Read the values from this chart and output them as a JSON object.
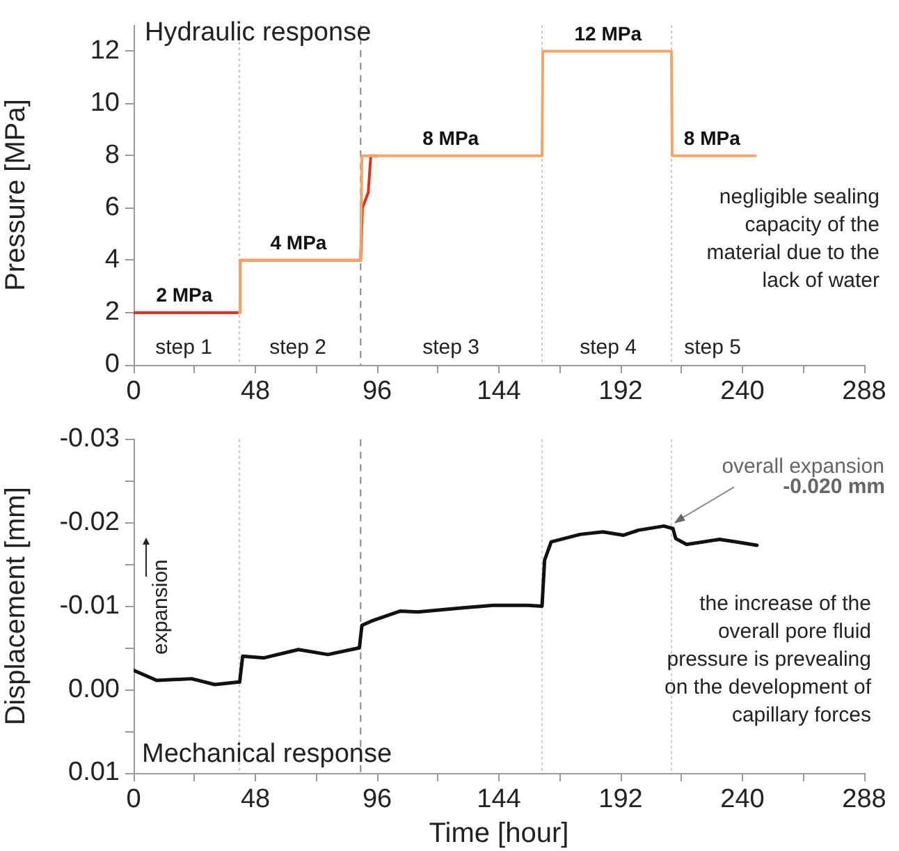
{
  "chart_data": [
    {
      "type": "line",
      "ylabel": "Pressure [MPa]",
      "xlim": [
        0,
        288
      ],
      "xticks": [
        0,
        {
          "value": 24,
          "label": null
        },
        48,
        {
          "value": 72,
          "label": null
        },
        96,
        {
          "value": 120,
          "label": null
        },
        144,
        {
          "value": 168,
          "label": null
        },
        192,
        {
          "value": 216,
          "label": null
        },
        240,
        {
          "value": 264,
          "label": null
        },
        288
      ],
      "ylim": [
        0,
        13
      ],
      "yticks": [
        0,
        2,
        4,
        6,
        8,
        10,
        12
      ],
      "series": [
        {
          "color": "#e0301e",
          "x": [
            0,
            41.7,
            42,
            89.5,
            90.2,
            92.5,
            93.5,
            96
          ],
          "values": [
            2,
            2,
            4,
            4,
            6,
            6.6,
            8,
            8
          ]
        },
        {
          "color": "#f4a468",
          "x": [
            41.7,
            42,
            89.5,
            90,
            161,
            161.3,
            212,
            212.3,
            245
          ],
          "values": [
            2,
            4,
            4,
            8,
            8,
            12,
            12,
            8,
            8
          ]
        }
      ],
      "ref_lines": [
        {
          "axis": "x",
          "value": 41.7,
          "color": "#c8c8c8",
          "line_style": "dotted"
        },
        {
          "axis": "x",
          "value": 89.5,
          "color": "#888888",
          "line_style": "dashed"
        },
        {
          "axis": "x",
          "value": 161,
          "color": "#c8c8c8",
          "line_style": "dotted"
        },
        {
          "axis": "x",
          "value": 212,
          "color": "#c8c8c8",
          "line_style": "dotted"
        }
      ],
      "annotations": [
        "Hydraulic response",
        "negligible sealing capacity of the material due to the lack of water",
        {
          "text": "2 MPa",
          "x": 20,
          "y": 2
        },
        {
          "text": "4 MPa",
          "x": 65,
          "y": 4
        },
        {
          "text": "8 MPa",
          "x": 125,
          "y": 8
        },
        {
          "text": "12 MPa",
          "x": 187,
          "y": 12
        },
        {
          "text": "8 MPa",
          "x": 228,
          "y": 8
        },
        "step 1",
        "step 2",
        "step 3",
        "step 4",
        "step 5"
      ],
      "grid": false,
      "legend": false,
      "marker": "none",
      "line_style": "solid"
    },
    {
      "type": "line",
      "xlabel": "Time [hour]",
      "ylabel": "Displacement [mm]",
      "xlim": [
        0,
        288
      ],
      "xticks": [
        0,
        {
          "value": 24,
          "label": null
        },
        48,
        {
          "value": 72,
          "label": null
        },
        96,
        {
          "value": 120,
          "label": null
        },
        144,
        {
          "value": 168,
          "label": null
        },
        192,
        {
          "value": 216,
          "label": null
        },
        240,
        {
          "value": 264,
          "label": null
        },
        288
      ],
      "ylim": [
        0.01,
        -0.03
      ],
      "yticks": [
        -0.03,
        {
          "value": -0.025,
          "label": null
        },
        -0.02,
        {
          "value": -0.015,
          "label": null
        },
        -0.01,
        {
          "value": -0.005,
          "label": null
        },
        {
          "value": 0,
          "label": "0.00"
        },
        {
          "value": 0.005,
          "label": null
        },
        0.01
      ],
      "series": [
        {
          "color": "#111111",
          "x": [
            0,
            9.1,
            22.9,
            32,
            41,
            41.8,
            43,
            51.4,
            65,
            76.6,
            89,
            90,
            93.7,
            105,
            112,
            130,
            141.7,
            155,
            161,
            162,
            164.6,
            176,
            185,
            193,
            199,
            209,
            212.6,
            213.7,
            218,
            231,
            237.7,
            245.7
          ],
          "values": [
            -0.0023,
            -0.0011,
            -0.0013,
            -0.0006,
            -0.0009,
            -0.0009,
            -0.004,
            -0.0038,
            -0.0048,
            -0.0042,
            -0.005,
            -0.0077,
            -0.0082,
            -0.0094,
            -0.0093,
            -0.0098,
            -0.0101,
            -0.0101,
            -0.01,
            -0.0155,
            -0.0177,
            -0.0186,
            -0.0189,
            -0.0185,
            -0.0191,
            -0.0196,
            -0.0193,
            -0.0181,
            -0.0174,
            -0.018,
            -0.0177,
            -0.0173
          ]
        }
      ],
      "ref_lines": [
        {
          "axis": "x",
          "value": 41.7,
          "color": "#c8c8c8",
          "line_style": "dotted"
        },
        {
          "axis": "x",
          "value": 89.5,
          "color": "#888888",
          "line_style": "dashed"
        },
        {
          "axis": "x",
          "value": 161,
          "color": "#c8c8c8",
          "line_style": "dotted"
        },
        {
          "axis": "x",
          "value": 212,
          "color": "#c8c8c8",
          "line_style": "dotted"
        }
      ],
      "annotations": [
        "expansion",
        "the increase of the overall pore fluid pressure is prevealing on the development of capillary forces",
        "Mechanical response",
        "-0.020 mm",
        {
          "text": "overall expansion",
          "x": 212,
          "y": -0.0196
        }
      ],
      "grid": false,
      "legend": false,
      "marker": "none",
      "line_style": "solid"
    }
  ]
}
